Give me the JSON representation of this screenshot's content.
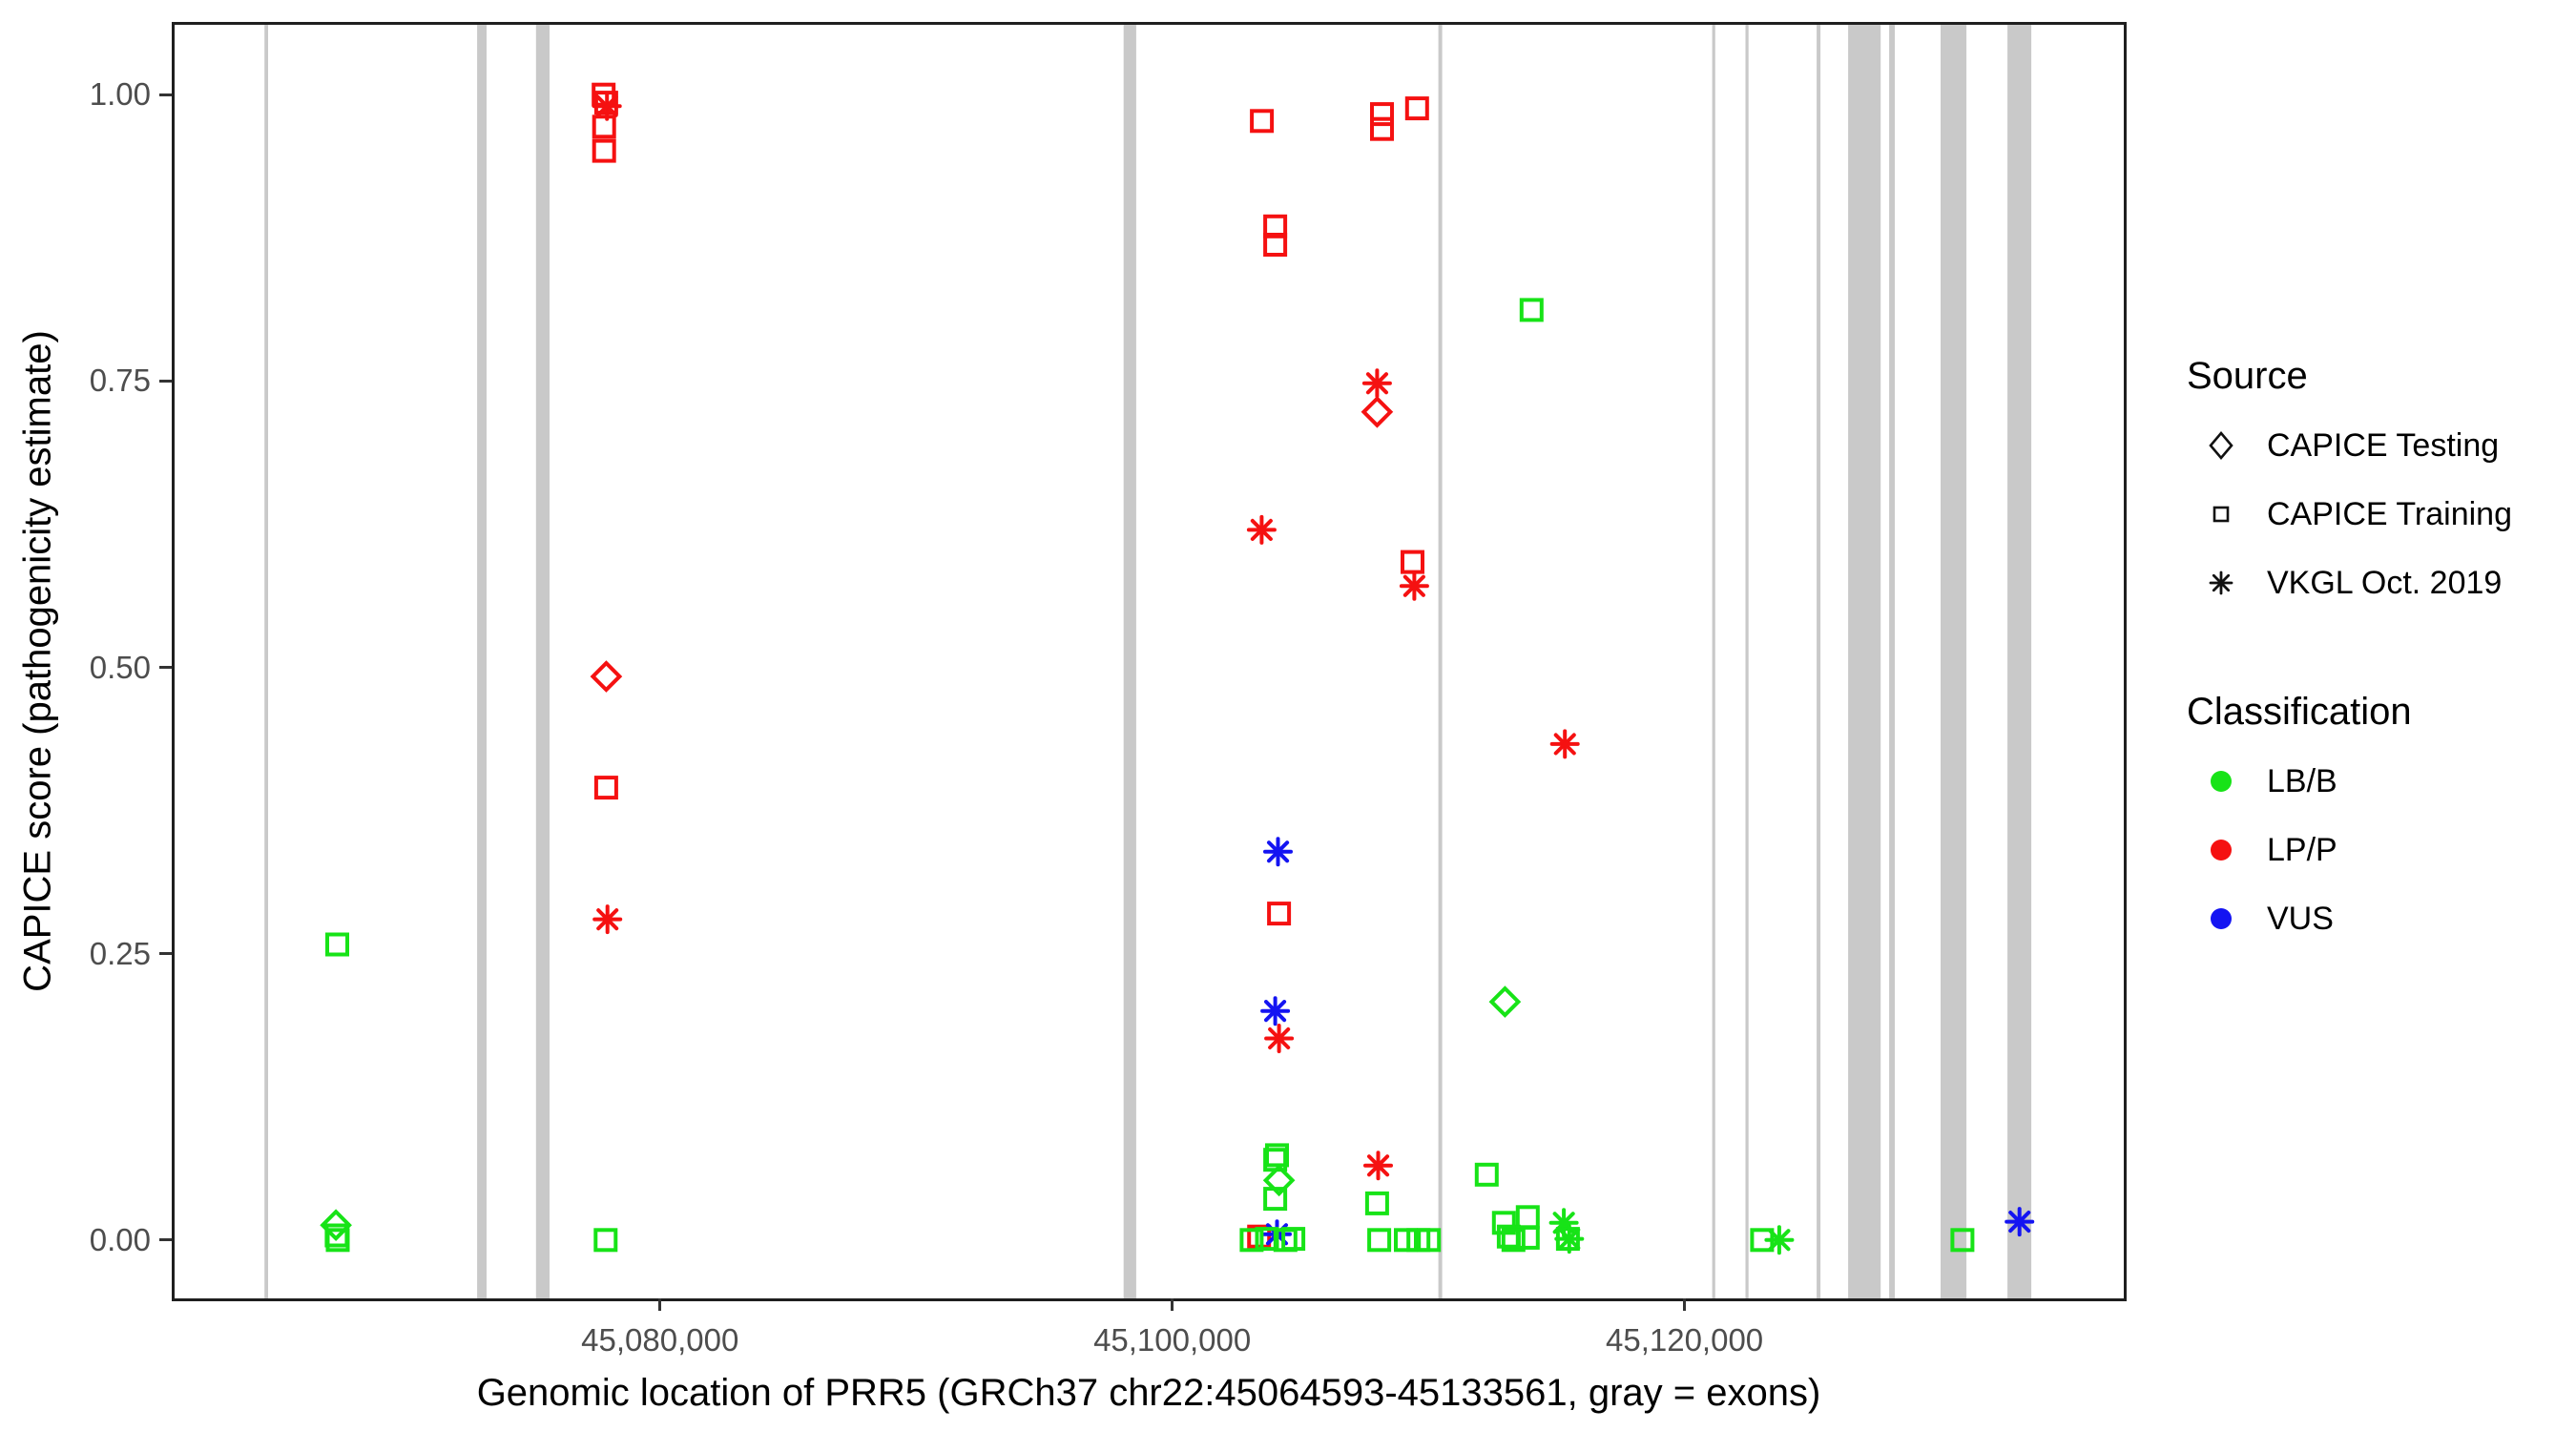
{
  "chart_data": {
    "type": "scatter",
    "title": "",
    "xlabel": "Genomic location of PRR5 (GRCh37 chr22:45064593-45133561, gray = exons)",
    "ylabel": "CAPICE score (pathogenicity estimate)",
    "xlim": [
      45061050,
      45137150
    ],
    "ylim": [
      -0.051,
      1.061
    ],
    "grid": false,
    "legend_position": "right",
    "x_ticks": [
      {
        "value": 45080000,
        "label": "45,080,000"
      },
      {
        "value": 45100000,
        "label": "45,100,000"
      },
      {
        "value": 45120000,
        "label": "45,120,000"
      }
    ],
    "y_ticks": [
      {
        "value": 1.0,
        "label": "1.00"
      },
      {
        "value": 0.75,
        "label": "0.75"
      },
      {
        "value": 0.5,
        "label": "0.50"
      },
      {
        "value": 0.25,
        "label": "0.25"
      },
      {
        "value": 0.0,
        "label": "0.00"
      }
    ],
    "gene": {
      "name": "PRR5",
      "assembly": "GRCh37",
      "region": "chr22:45064593-45133561"
    },
    "exons_note": "gray = exons",
    "exons": [
      {
        "start": 45064560,
        "end": 45064700
      },
      {
        "start": 45072860,
        "end": 45073230
      },
      {
        "start": 45075160,
        "end": 45075690
      },
      {
        "start": 45098100,
        "end": 45098590
      },
      {
        "start": 45110390,
        "end": 45110540
      },
      {
        "start": 45121080,
        "end": 45121200
      },
      {
        "start": 45122380,
        "end": 45122500
      },
      {
        "start": 45125160,
        "end": 45125310
      },
      {
        "start": 45126390,
        "end": 45127660
      },
      {
        "start": 45127990,
        "end": 45128210
      },
      {
        "start": 45130000,
        "end": 45131010
      },
      {
        "start": 45132610,
        "end": 45133540
      }
    ],
    "points_format": [
      "genomic_position",
      "capice_score",
      "source(testing=diamond|training=square|vkgl=asterisk)",
      "classification"
    ],
    "points": [
      [
        45067400,
        0.258,
        "training",
        "LB/B"
      ],
      [
        45067350,
        0.013,
        "testing",
        "LB/B"
      ],
      [
        45067380,
        0.004,
        "training",
        "LB/B"
      ],
      [
        45067420,
        0.0,
        "training",
        "LB/B"
      ],
      [
        45077800,
        1.0,
        "training",
        "LP/P"
      ],
      [
        45077900,
        0.993,
        "training",
        "LP/P"
      ],
      [
        45077930,
        0.99,
        "vkgl",
        "LP/P"
      ],
      [
        45077820,
        0.972,
        "training",
        "LP/P"
      ],
      [
        45077820,
        0.951,
        "training",
        "LP/P"
      ],
      [
        45077900,
        0.492,
        "testing",
        "LP/P"
      ],
      [
        45077900,
        0.395,
        "training",
        "LP/P"
      ],
      [
        45077950,
        0.28,
        "vkgl",
        "LP/P"
      ],
      [
        45077880,
        0.0,
        "training",
        "LB/B"
      ],
      [
        45103500,
        0.977,
        "training",
        "LP/P"
      ],
      [
        45108190,
        0.983,
        "training",
        "LP/P"
      ],
      [
        45108190,
        0.97,
        "training",
        "LP/P"
      ],
      [
        45109560,
        0.988,
        "training",
        "LP/P"
      ],
      [
        45104020,
        0.885,
        "training",
        "LP/P"
      ],
      [
        45104020,
        0.869,
        "training",
        "LP/P"
      ],
      [
        45114030,
        0.812,
        "training",
        "LB/B"
      ],
      [
        45103490,
        0.62,
        "vkgl",
        "LP/P"
      ],
      [
        45108000,
        0.748,
        "vkgl",
        "LP/P"
      ],
      [
        45108000,
        0.723,
        "testing",
        "LP/P"
      ],
      [
        45109380,
        0.592,
        "training",
        "LP/P"
      ],
      [
        45109450,
        0.571,
        "vkgl",
        "LP/P"
      ],
      [
        45104130,
        0.339,
        "vkgl",
        "VUS"
      ],
      [
        45104170,
        0.285,
        "training",
        "LP/P"
      ],
      [
        45104020,
        0.2,
        "vkgl",
        "VUS"
      ],
      [
        45104170,
        0.176,
        "vkgl",
        "LP/P"
      ],
      [
        45104090,
        0.074,
        "training",
        "LB/B"
      ],
      [
        45104020,
        0.07,
        "training",
        "LB/B"
      ],
      [
        45104170,
        0.052,
        "testing",
        "LB/B"
      ],
      [
        45104020,
        0.036,
        "training",
        "LB/B"
      ],
      [
        45103390,
        0.003,
        "training",
        "LP/P"
      ],
      [
        45104090,
        0.005,
        "vkgl",
        "VUS"
      ],
      [
        45103100,
        0.0,
        "training",
        "LB/B"
      ],
      [
        45103700,
        0.001,
        "training",
        "LB/B"
      ],
      [
        45104420,
        0.0,
        "training",
        "LB/B"
      ],
      [
        45104730,
        0.001,
        "training",
        "LB/B"
      ],
      [
        45108040,
        0.065,
        "vkgl",
        "LP/P"
      ],
      [
        45108000,
        0.032,
        "training",
        "LB/B"
      ],
      [
        45108080,
        0.0,
        "training",
        "LB/B"
      ],
      [
        45109120,
        0.0,
        "training",
        "LB/B"
      ],
      [
        45109610,
        0.0,
        "training",
        "LB/B"
      ],
      [
        45110020,
        0.0,
        "training",
        "LB/B"
      ],
      [
        45112280,
        0.057,
        "training",
        "LB/B"
      ],
      [
        45112990,
        0.208,
        "testing",
        "LB/B"
      ],
      [
        45115330,
        0.433,
        "vkgl",
        "LP/P"
      ],
      [
        45112950,
        0.015,
        "training",
        "LB/B"
      ],
      [
        45113140,
        0.003,
        "training",
        "LB/B"
      ],
      [
        45113880,
        0.02,
        "training",
        "LB/B"
      ],
      [
        45113880,
        0.002,
        "training",
        "LB/B"
      ],
      [
        45113320,
        0.0,
        "training",
        "LB/B"
      ],
      [
        45115290,
        0.015,
        "vkgl",
        "LB/B"
      ],
      [
        45115450,
        0.001,
        "training",
        "LB/B"
      ],
      [
        45115500,
        0.001,
        "vkgl",
        "LB/B"
      ],
      [
        45123030,
        0.0,
        "training",
        "LB/B"
      ],
      [
        45123700,
        0.0,
        "vkgl",
        "LB/B"
      ],
      [
        45130850,
        0.0,
        "training",
        "LB/B"
      ],
      [
        45133080,
        0.016,
        "vkgl",
        "VUS"
      ]
    ]
  },
  "legend": {
    "source": {
      "title": "Source",
      "items": [
        {
          "label": "CAPICE Testing",
          "shape": "diamond"
        },
        {
          "label": "CAPICE Training",
          "shape": "square"
        },
        {
          "label": "VKGL Oct. 2019",
          "shape": "asterisk"
        }
      ]
    },
    "classification": {
      "title": "Classification",
      "items": [
        {
          "label": "LB/B",
          "color": "#17e317"
        },
        {
          "label": "LP/P",
          "color": "#f51111"
        },
        {
          "label": "VUS",
          "color": "#1414f2"
        }
      ]
    }
  },
  "colors": {
    "LB/B": "#17e317",
    "LP/P": "#f51111",
    "VUS": "#1414f2",
    "exon": "#c9c9c9",
    "axis_text": "#4d4d4d",
    "axis_line": "#1f1f1f"
  }
}
